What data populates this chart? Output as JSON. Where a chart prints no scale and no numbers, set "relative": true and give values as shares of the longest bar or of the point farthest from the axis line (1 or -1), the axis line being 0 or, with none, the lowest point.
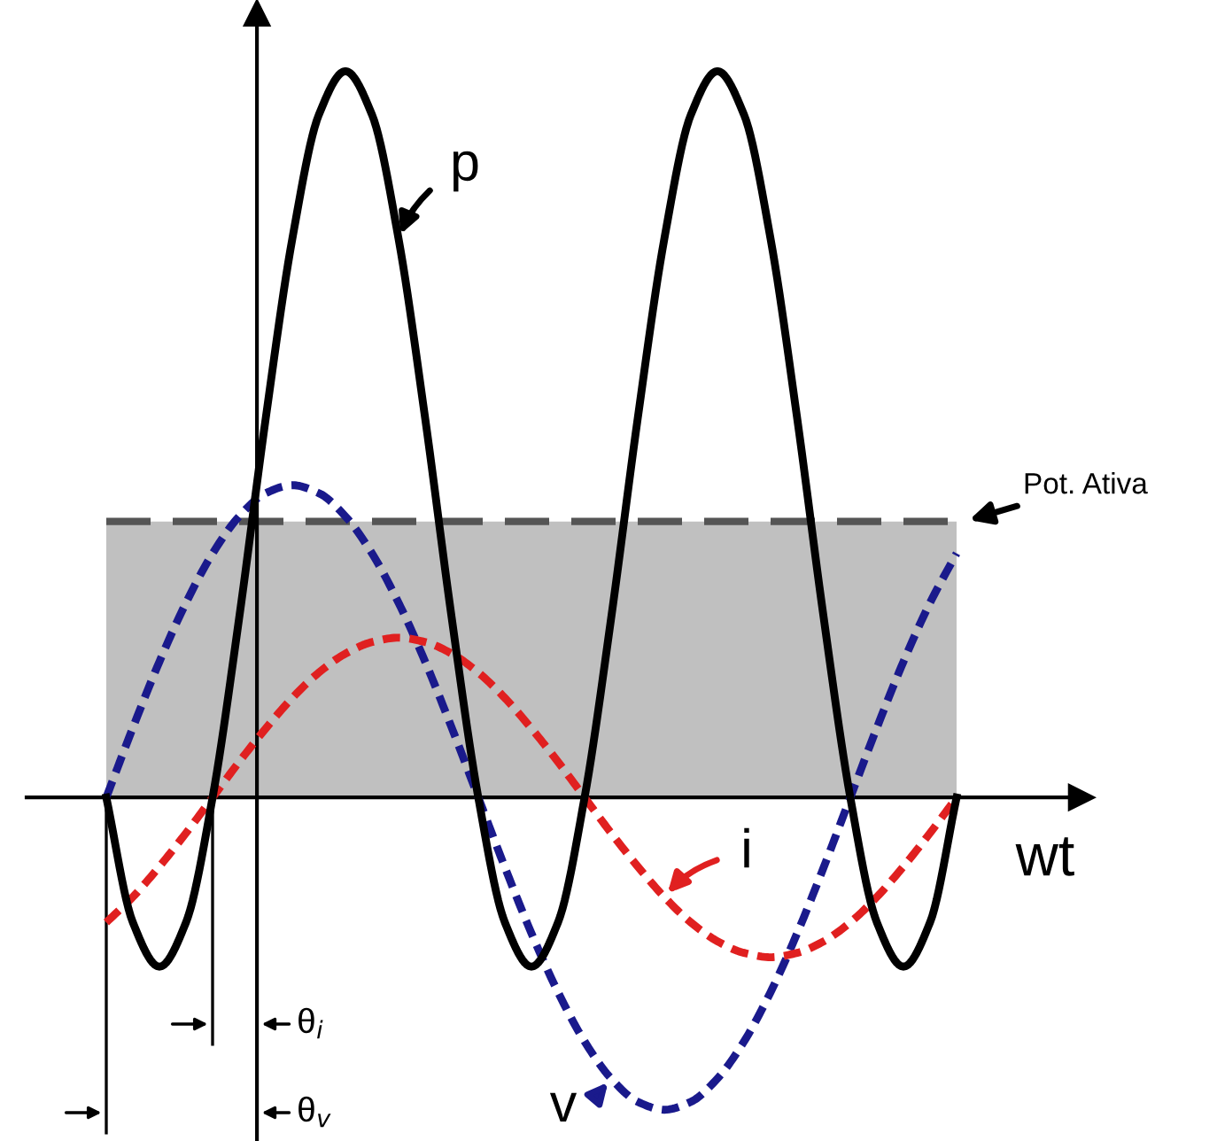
{
  "chart_data": {
    "type": "line",
    "relative": true,
    "xlabel": "wt",
    "legend": "top",
    "categories": [
      null,
      null,
      null,
      null,
      null,
      null,
      null,
      null,
      null,
      null,
      null,
      null,
      null,
      null,
      null,
      null,
      null,
      null,
      null,
      null,
      null,
      null,
      null,
      null,
      null,
      null,
      null,
      null,
      null,
      null,
      null,
      null,
      null
    ],
    "series": [
      {
        "name": "p",
        "color": "#000000",
        "line_style": "solid",
        "values": [
          0,
          -0.172,
          -0.233,
          -0.172,
          0,
          0.247,
          0.522,
          0.769,
          0.94,
          1.0,
          0.94,
          0.769,
          0.522,
          0.247,
          0,
          -0.172,
          -0.233,
          -0.172,
          0,
          0.247,
          0.522,
          0.769,
          0.94,
          1.0,
          0.94,
          0.769,
          0.522,
          0.247,
          0,
          -0.172,
          -0.233,
          -0.172,
          0
        ]
      },
      {
        "name": "v",
        "color": "#1a1a8c",
        "line_style": "dashed",
        "values": [
          0,
          0.096,
          0.187,
          0.268,
          0.336,
          0.387,
          0.419,
          0.43,
          0.419,
          0.387,
          0.336,
          0.268,
          0.187,
          0.096,
          0,
          -0.096,
          -0.187,
          -0.268,
          -0.336,
          -0.387,
          -0.419,
          -0.43,
          -0.419,
          -0.387,
          -0.336,
          -0.268,
          -0.187,
          -0.096,
          0,
          0.096,
          0.187,
          0.268,
          0.336
        ]
      },
      {
        "name": "i",
        "color": "#e02020",
        "line_style": "dashed",
        "values": [
          -0.172,
          -0.137,
          -0.095,
          -0.049,
          0,
          0.049,
          0.095,
          0.137,
          0.172,
          0.198,
          0.214,
          0.22,
          0.214,
          0.198,
          0.172,
          0.137,
          0.095,
          0.049,
          0,
          -0.049,
          -0.095,
          -0.137,
          -0.172,
          -0.198,
          -0.214,
          -0.22,
          -0.214,
          -0.198,
          -0.172,
          -0.137,
          -0.095,
          -0.049,
          0
        ]
      }
    ],
    "bands": [
      {
        "axis": "y",
        "from": 0,
        "to": 0.38,
        "color": "#c0c0c0"
      }
    ],
    "ref_lines": [
      {
        "axis": "y",
        "value": 0.38,
        "label": "Pot. Ativa",
        "color": "#555555",
        "line_style": "dashed"
      }
    ],
    "annotations": [
      "θ$_{i}$",
      "θ$_{v}$"
    ]
  }
}
